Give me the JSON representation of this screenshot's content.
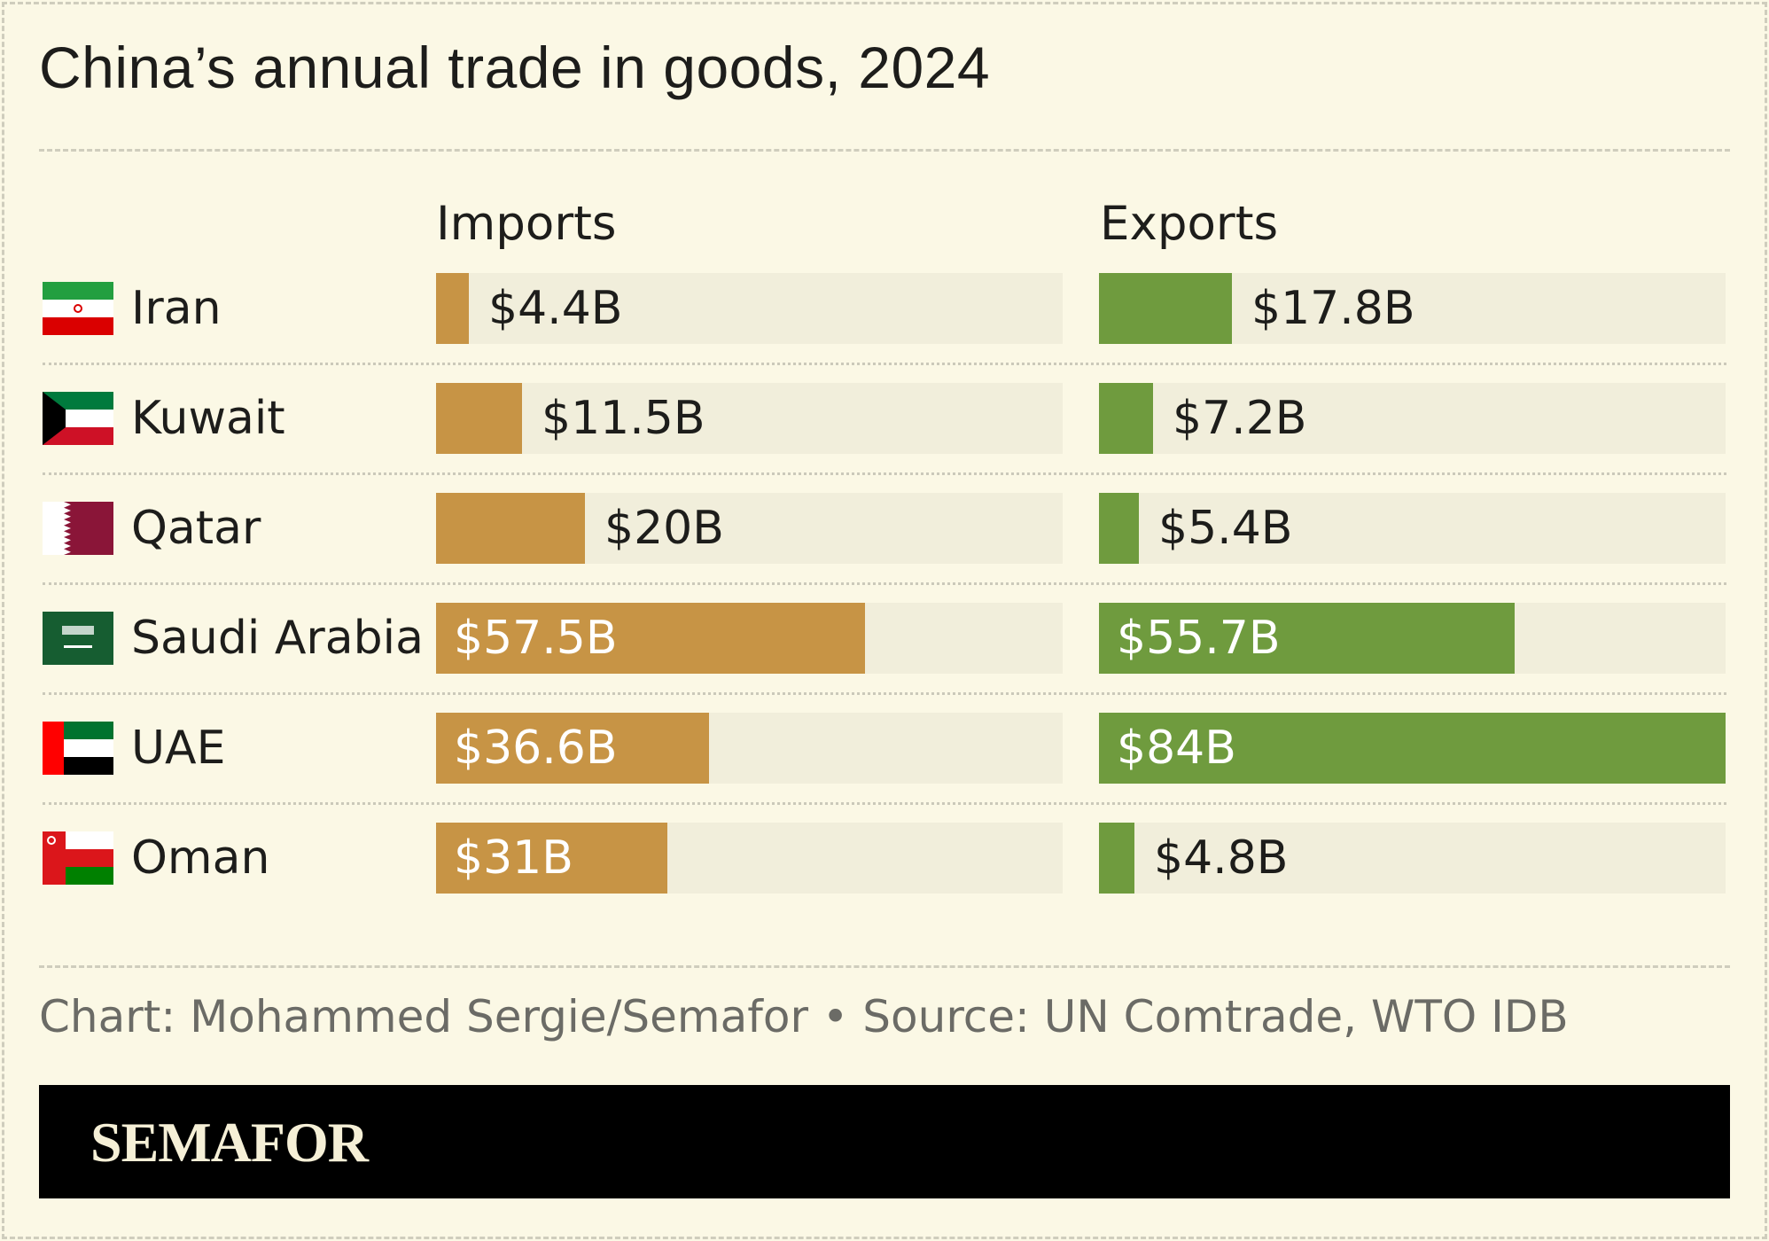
{
  "title": "China’s annual trade in goods, 2024",
  "chart_data": {
    "type": "bar",
    "orientation": "horizontal",
    "categories": [
      "Iran",
      "Kuwait",
      "Qatar",
      "Saudi Arabia",
      "UAE",
      "Oman"
    ],
    "panels": [
      {
        "title": "Imports",
        "values": [
          4.4,
          11.5,
          20,
          57.5,
          36.6,
          31
        ],
        "labels": [
          "$4.4B",
          "$11.5B",
          "$20B",
          "$57.5B",
          "$36.6B",
          "$31B"
        ],
        "color": "#c79445"
      },
      {
        "title": "Exports",
        "values": [
          17.8,
          7.2,
          5.4,
          55.7,
          84,
          4.8
        ],
        "labels": [
          "$17.8B",
          "$7.2B",
          "$5.4B",
          "$55.7B",
          "$84B",
          "$4.8B"
        ],
        "color": "#6f9b3e"
      }
    ],
    "xlim": [
      0,
      84
    ],
    "grid": false
  },
  "flags": [
    "iran-flag-icon",
    "kuwait-flag-icon",
    "qatar-flag-icon",
    "saudi-arabia-flag-icon",
    "uae-flag-icon",
    "oman-flag-icon"
  ],
  "source": "Chart: Mohammed Sergie/Semafor • Source: UN Comtrade, WTO IDB",
  "brand": "SEMAFOR",
  "colors": {
    "background": "#fbf8e5",
    "track": "#f1eedb",
    "footer": "#000000",
    "brand_text": "#f5efd6"
  }
}
